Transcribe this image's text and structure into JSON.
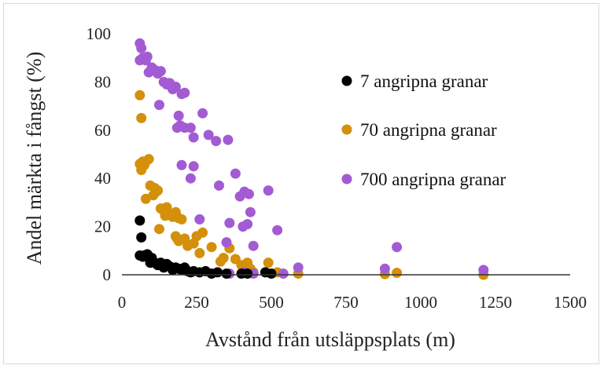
{
  "chart_data": {
    "type": "scatter",
    "xlabel": "Avstånd från utsläppsplats (m)",
    "ylabel": "Andel märkta i fångst (%)",
    "xlim": [
      0,
      1500
    ],
    "ylim": [
      0,
      100
    ],
    "xticks": [
      0,
      250,
      500,
      750,
      1000,
      1250,
      1500
    ],
    "yticks": [
      0,
      20,
      40,
      60,
      80,
      100
    ],
    "grid": false,
    "legend": "inside, upper right",
    "series": [
      {
        "name": "7 angripna granar",
        "color": "#000000",
        "points": [
          [
            60,
            22.5
          ],
          [
            65,
            15.5
          ],
          [
            60,
            8
          ],
          [
            70,
            7.5
          ],
          [
            75,
            8
          ],
          [
            85,
            8.5
          ],
          [
            95,
            5
          ],
          [
            100,
            7
          ],
          [
            110,
            5
          ],
          [
            120,
            4
          ],
          [
            130,
            5
          ],
          [
            140,
            3
          ],
          [
            150,
            4.5
          ],
          [
            160,
            3.5
          ],
          [
            170,
            2
          ],
          [
            180,
            3
          ],
          [
            190,
            2.5
          ],
          [
            200,
            2
          ],
          [
            210,
            3
          ],
          [
            220,
            1.5
          ],
          [
            230,
            1
          ],
          [
            240,
            1.5
          ],
          [
            260,
            1
          ],
          [
            280,
            1.5
          ],
          [
            300,
            0.5
          ],
          [
            320,
            1
          ],
          [
            350,
            0.5
          ],
          [
            400,
            0.5
          ],
          [
            420,
            0.5
          ],
          [
            480,
            1
          ],
          [
            500,
            0.5
          ]
        ]
      },
      {
        "name": "70 angripna granar",
        "color": "#d4900a",
        "points": [
          [
            60,
            74.5
          ],
          [
            65,
            65
          ],
          [
            60,
            46
          ],
          [
            70,
            47
          ],
          [
            65,
            43.5
          ],
          [
            75,
            45.5
          ],
          [
            80,
            47
          ],
          [
            90,
            48
          ],
          [
            80,
            31.5
          ],
          [
            95,
            37
          ],
          [
            110,
            36
          ],
          [
            105,
            33
          ],
          [
            115,
            34.5
          ],
          [
            120,
            35
          ],
          [
            130,
            27.5
          ],
          [
            140,
            26.5
          ],
          [
            150,
            28
          ],
          [
            145,
            24.5
          ],
          [
            160,
            25
          ],
          [
            170,
            24
          ],
          [
            180,
            26
          ],
          [
            190,
            23.5
          ],
          [
            200,
            23
          ],
          [
            125,
            19
          ],
          [
            180,
            16
          ],
          [
            185,
            15
          ],
          [
            190,
            14
          ],
          [
            210,
            15
          ],
          [
            220,
            12
          ],
          [
            240,
            13
          ],
          [
            250,
            16
          ],
          [
            260,
            9
          ],
          [
            270,
            17.5
          ],
          [
            300,
            11.5
          ],
          [
            330,
            5.5
          ],
          [
            340,
            7
          ],
          [
            360,
            11
          ],
          [
            380,
            6.5
          ],
          [
            400,
            4
          ],
          [
            420,
            5
          ],
          [
            430,
            2.5
          ],
          [
            440,
            1
          ],
          [
            490,
            5
          ],
          [
            520,
            1
          ],
          [
            590,
            0.5
          ],
          [
            880,
            0.3
          ],
          [
            920,
            0.8
          ],
          [
            1210,
            0
          ]
        ]
      },
      {
        "name": "700 angripna granar",
        "color": "#a35bd4",
        "points": [
          [
            60,
            96
          ],
          [
            65,
            94
          ],
          [
            60,
            89
          ],
          [
            70,
            90
          ],
          [
            80,
            89
          ],
          [
            85,
            90.5
          ],
          [
            90,
            84
          ],
          [
            100,
            86
          ],
          [
            110,
            85
          ],
          [
            120,
            83.5
          ],
          [
            130,
            84.5
          ],
          [
            140,
            80
          ],
          [
            150,
            79
          ],
          [
            160,
            79.5
          ],
          [
            170,
            77
          ],
          [
            180,
            78
          ],
          [
            200,
            75
          ],
          [
            210,
            75.5
          ],
          [
            125,
            70.5
          ],
          [
            190,
            66
          ],
          [
            185,
            61
          ],
          [
            195,
            62
          ],
          [
            210,
            61
          ],
          [
            230,
            61
          ],
          [
            240,
            57
          ],
          [
            270,
            67
          ],
          [
            290,
            58
          ],
          [
            315,
            55.5
          ],
          [
            355,
            56
          ],
          [
            200,
            45.5
          ],
          [
            230,
            40
          ],
          [
            240,
            45
          ],
          [
            260,
            23
          ],
          [
            325,
            37
          ],
          [
            360,
            21.5
          ],
          [
            380,
            42
          ],
          [
            395,
            32.5
          ],
          [
            410,
            34.5
          ],
          [
            425,
            33.5
          ],
          [
            405,
            20
          ],
          [
            420,
            21
          ],
          [
            430,
            26
          ],
          [
            350,
            13.5
          ],
          [
            440,
            12
          ],
          [
            490,
            35
          ],
          [
            520,
            18.5
          ],
          [
            360,
            0.5
          ],
          [
            410,
            1
          ],
          [
            440,
            0.5
          ],
          [
            540,
            0.5
          ],
          [
            590,
            3
          ],
          [
            880,
            2.5
          ],
          [
            920,
            11.5
          ],
          [
            1210,
            2
          ]
        ]
      }
    ]
  }
}
